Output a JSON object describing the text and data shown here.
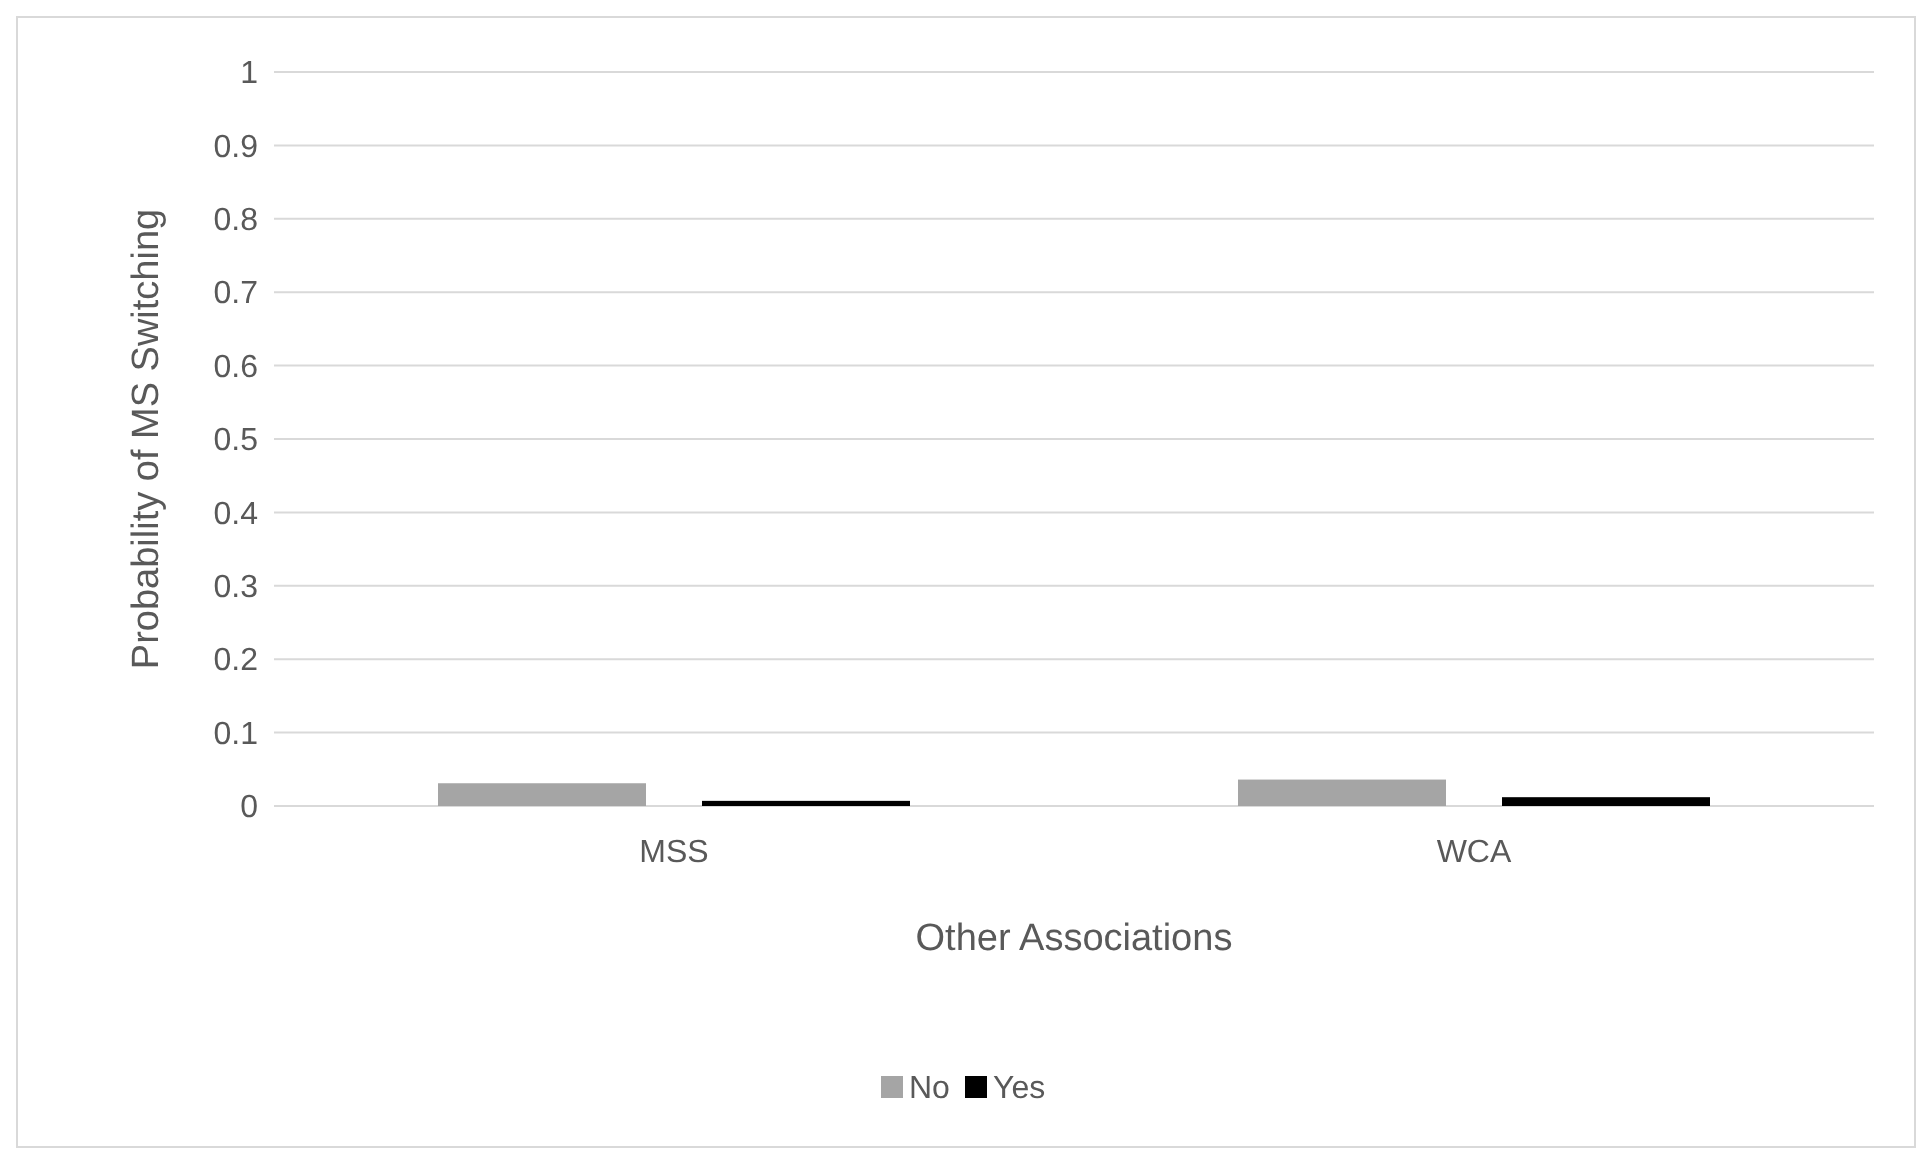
{
  "chart_data": {
    "type": "bar",
    "xlabel": "Other Associations",
    "ylabel": "Probability of MS Switching",
    "categories": [
      "MSS",
      "WCA"
    ],
    "series": [
      {
        "name": "No",
        "color": "#a5a5a5",
        "values": [
          0.031,
          0.036
        ]
      },
      {
        "name": "Yes",
        "color": "#000000",
        "values": [
          0.007,
          0.012
        ]
      }
    ],
    "ylim": [
      0,
      1
    ],
    "yticks": [
      0,
      0.1,
      0.2,
      0.3,
      0.4,
      0.5,
      0.6,
      0.7,
      0.8,
      0.9,
      1
    ],
    "grid": "y",
    "legend": "bottom"
  }
}
